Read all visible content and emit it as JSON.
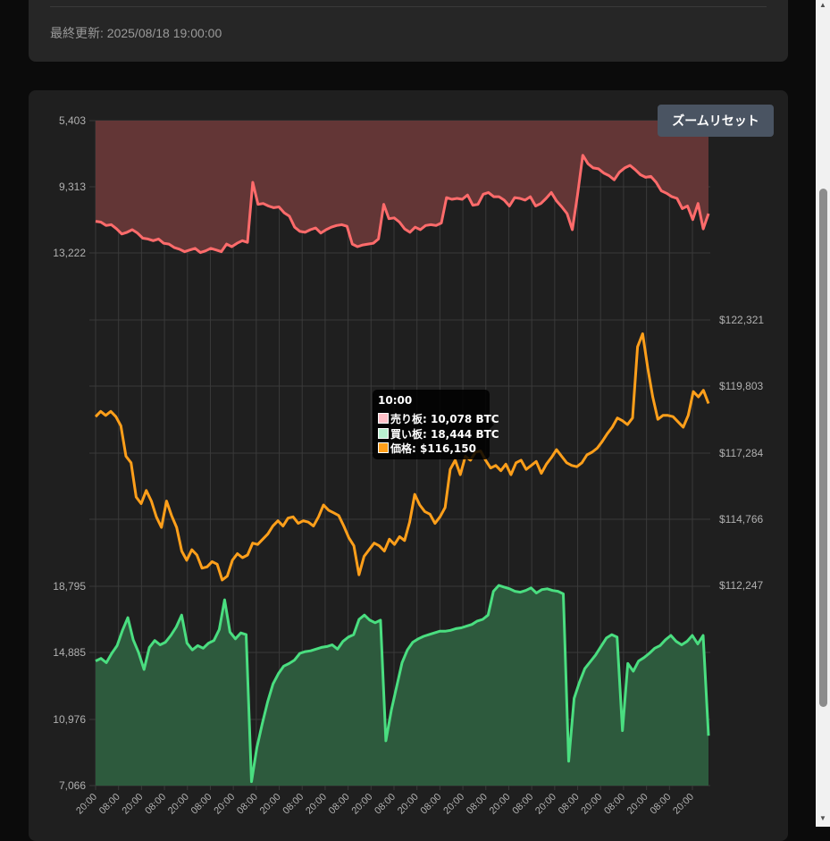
{
  "header": {
    "last_updated": "最終更新: 2025/08/18 19:00:00"
  },
  "controls": {
    "zoom_reset_label": "ズームリセット"
  },
  "tooltip": {
    "title": "10:00",
    "rows": [
      {
        "label": "売り板: 10,078 BTC",
        "color": "#ffc0c8"
      },
      {
        "label": "買い板: 18,444 BTC",
        "color": "#b8f0d0"
      },
      {
        "label": "価格: $116,150",
        "color": "#ff9f1a"
      }
    ]
  },
  "colors": {
    "sell": "#ff6b6b",
    "sell_fill": "#633636",
    "buy": "#4ade80",
    "buy_fill": "#2d5a3d",
    "price": "#ff9f1a",
    "grid": "#3a3a3a",
    "tick_text": "#b0b0b0"
  },
  "chart_data": {
    "type": "line",
    "x_tick_labels": [
      "20:00",
      "08:00",
      "20:00",
      "08:00",
      "20:00",
      "08:00",
      "20:00",
      "08:00",
      "20:00",
      "08:00",
      "20:00",
      "08:00",
      "20:00",
      "08:00",
      "20:00",
      "08:00",
      "20:00",
      "08:00",
      "20:00",
      "08:00",
      "20:00",
      "08:00",
      "20:00",
      "08:00",
      "20:00",
      "08:00",
      "20:00"
    ],
    "panels": [
      {
        "name": "売り板",
        "unit": "BTC",
        "y_axis": "left",
        "reversed": true,
        "y_ticks": [
          "5,403",
          "9,313",
          "13,222"
        ],
        "ylim": [
          5403,
          13222
        ],
        "values": [
          11350,
          11400,
          11600,
          11550,
          11800,
          12100,
          12000,
          11850,
          12050,
          12350,
          12400,
          12500,
          12400,
          12650,
          12700,
          12900,
          13000,
          13150,
          13050,
          12950,
          13200,
          13100,
          12950,
          13050,
          13150,
          12700,
          12850,
          12650,
          12500,
          12600,
          9050,
          10350,
          10300,
          10450,
          10550,
          10500,
          10850,
          11050,
          11700,
          11950,
          12000,
          11850,
          11750,
          12050,
          11850,
          11700,
          11600,
          11550,
          11650,
          12700,
          12850,
          12750,
          12700,
          12650,
          12400,
          10350,
          11200,
          11150,
          11400,
          11800,
          12000,
          11700,
          11850,
          11600,
          11550,
          11600,
          11450,
          9950,
          10050,
          10000,
          10050,
          9800,
          10400,
          10350,
          9750,
          9650,
          9900,
          9900,
          10100,
          10450,
          9950,
          10000,
          10100,
          9900,
          10450,
          10300,
          10000,
          9650,
          10150,
          10500,
          10900,
          11850,
          9800,
          7450,
          7950,
          8200,
          8250,
          8500,
          8650,
          8900,
          8450,
          8200,
          8050,
          8300,
          8600,
          8750,
          8700,
          9050,
          9550,
          9700,
          9900,
          10000,
          10600,
          10450,
          11250,
          10300,
          11800,
          10900
        ]
      },
      {
        "name": "価格",
        "unit": "$",
        "y_axis": "right",
        "y_ticks": [
          "$122,321",
          "$119,803",
          "$117,284",
          "$114,766",
          "$112,247"
        ],
        "ylim": [
          112247,
          122321
        ],
        "values": [
          118650,
          118850,
          118700,
          118850,
          118650,
          118300,
          117150,
          116900,
          115600,
          115350,
          115850,
          115450,
          114850,
          114450,
          115450,
          114900,
          114450,
          113550,
          113200,
          113600,
          113400,
          112900,
          112950,
          113150,
          113050,
          112450,
          112600,
          113200,
          113450,
          113300,
          113400,
          113850,
          113800,
          114000,
          114200,
          114500,
          114700,
          114500,
          114800,
          114850,
          114600,
          114700,
          114650,
          114500,
          114850,
          115300,
          115100,
          115000,
          114900,
          114500,
          114050,
          113750,
          112650,
          113350,
          113600,
          113850,
          113750,
          113550,
          114000,
          113800,
          114100,
          113950,
          114650,
          115700,
          115300,
          115050,
          114950,
          114600,
          114850,
          115200,
          116650,
          117000,
          116450,
          117150,
          117000,
          117300,
          117350,
          117000,
          116700,
          116800,
          116600,
          116850,
          116450,
          116900,
          117000,
          116650,
          116800,
          116950,
          116500,
          116850,
          117100,
          117400,
          117150,
          116900,
          116800,
          116750,
          116900,
          117200,
          117300,
          117450,
          117700,
          118000,
          118250,
          118600,
          118500,
          118350,
          118600,
          121300,
          121800,
          120500,
          119400,
          118550,
          118700,
          118700,
          118650,
          118450,
          118250,
          118700,
          119600,
          119400,
          119650,
          119150
        ]
      },
      {
        "name": "買い板",
        "unit": "BTC",
        "y_axis": "left",
        "y_ticks": [
          "18,795",
          "14,885",
          "10,976",
          "7,066"
        ],
        "ylim": [
          7066,
          18795
        ],
        "values": [
          14400,
          14550,
          14300,
          14850,
          15300,
          16200,
          16950,
          15650,
          14900,
          13900,
          15200,
          15600,
          15350,
          15500,
          15900,
          16400,
          17100,
          15450,
          15050,
          15300,
          15150,
          15450,
          15600,
          16250,
          18000,
          16100,
          15700,
          16050,
          15950,
          7300,
          9300,
          10700,
          12000,
          13050,
          13650,
          14100,
          14250,
          14450,
          14850,
          14950,
          15000,
          15100,
          15200,
          15250,
          15350,
          15100,
          15550,
          15800,
          15950,
          16850,
          17100,
          16800,
          16650,
          16800,
          9700,
          11500,
          12900,
          14300,
          15050,
          15500,
          15700,
          15850,
          15950,
          16050,
          16150,
          16150,
          16200,
          16300,
          16350,
          16450,
          16550,
          16750,
          16850,
          17100,
          18500,
          18850,
          18750,
          18650,
          18500,
          18450,
          18550,
          18700,
          18400,
          18600,
          18650,
          18550,
          18500,
          18350,
          8500,
          12200,
          13150,
          13950,
          14350,
          14750,
          15250,
          15750,
          15950,
          15800,
          10300,
          14250,
          13800,
          14400,
          14600,
          14850,
          15150,
          15300,
          15650,
          15900,
          15550,
          15350,
          15550,
          15900,
          15400,
          15900,
          10000
        ]
      }
    ]
  }
}
